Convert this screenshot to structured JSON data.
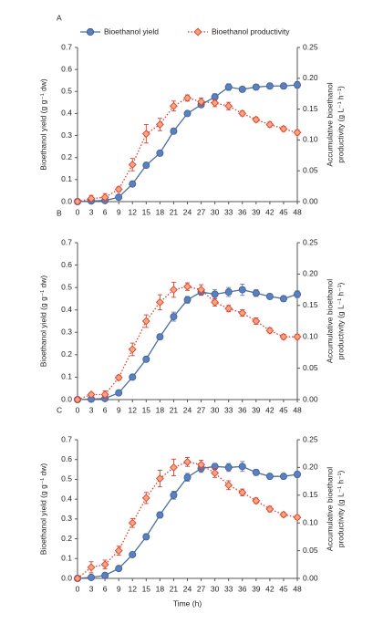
{
  "chart_data": [
    {
      "type": "line",
      "panel_label": "A",
      "x": [
        0,
        3,
        6,
        9,
        12,
        15,
        18,
        21,
        24,
        27,
        30,
        33,
        36,
        39,
        42,
        45,
        48
      ],
      "xlim": [
        0,
        48
      ],
      "xticks": [
        0,
        3,
        6,
        9,
        12,
        15,
        18,
        21,
        24,
        27,
        30,
        33,
        36,
        39,
        42,
        45,
        48
      ],
      "ylim": [
        0,
        0.7
      ],
      "yticks": [
        {
          "value": 0,
          "label": "0.0"
        },
        0.1,
        0.2,
        0.3,
        0.4,
        0.5,
        0.6,
        0.7
      ],
      "y2lim": [
        0,
        0.25
      ],
      "y2ticks": [
        {
          "value": 0,
          "label": "0.00"
        },
        0.05,
        {
          "value": 0.1,
          "label": "0.10"
        },
        0.15,
        {
          "value": 0.2,
          "label": "0.20"
        },
        0.25
      ],
      "ylabel": "Bioethanol yield (g g⁻¹ dw)",
      "y2label": [
        "Accumulative bioethanol",
        "productivity (g L⁻¹ h⁻¹)"
      ],
      "legend": true,
      "series": [
        {
          "name": "Bioethanol yield",
          "color": "#4a6fa5",
          "axis": "y",
          "values": [
            0,
            0.003,
            0.005,
            0.02,
            0.08,
            0.165,
            0.22,
            0.32,
            0.4,
            0.44,
            0.475,
            0.52,
            0.51,
            0.52,
            0.525,
            0.525,
            0.53
          ],
          "errors": [
            0,
            0.003,
            0.004,
            0.005,
            0.01,
            0.012,
            0.012,
            0.012,
            0.01,
            0.01,
            0.015,
            0.015,
            0.01,
            0.012,
            0.012,
            0.012,
            0.015
          ]
        },
        {
          "name": "Bioethanol productivity",
          "color": "#e0402a",
          "axis": "y2",
          "values": [
            0,
            0.005,
            0.007,
            0.02,
            0.06,
            0.11,
            0.125,
            0.155,
            0.168,
            0.162,
            0.16,
            0.155,
            0.143,
            0.133,
            0.125,
            0.118,
            0.112
          ],
          "errors": [
            0,
            0.005,
            0.006,
            0.004,
            0.01,
            0.015,
            0.01,
            0.008,
            0.005,
            0.006,
            0.006,
            0.006,
            0.004,
            0.004,
            0.004,
            0.004,
            0.004
          ]
        }
      ]
    },
    {
      "type": "line",
      "panel_label": "B",
      "x": [
        0,
        3,
        6,
        9,
        12,
        15,
        18,
        21,
        24,
        27,
        30,
        33,
        36,
        39,
        42,
        45,
        48
      ],
      "xlim": [
        0,
        48
      ],
      "xticks": [
        0,
        3,
        6,
        9,
        12,
        15,
        18,
        21,
        24,
        27,
        30,
        33,
        36,
        39,
        42,
        45,
        48
      ],
      "ylim": [
        0,
        0.7
      ],
      "yticks": [
        {
          "value": 0,
          "label": "0.0"
        },
        0.1,
        0.2,
        0.3,
        0.4,
        0.5,
        0.6,
        0.7
      ],
      "y2lim": [
        0,
        0.25
      ],
      "y2ticks": [
        {
          "value": 0,
          "label": "0.00"
        },
        0.05,
        {
          "value": 0.1,
          "label": "0.10"
        },
        0.15,
        {
          "value": 0.2,
          "label": "0.20"
        },
        0.25
      ],
      "ylabel": "Bioethanol yield (g g⁻¹ dw)",
      "y2label": [
        "Accumulative bioethanol",
        "productivity (g L⁻¹ h⁻¹)"
      ],
      "legend": false,
      "series": [
        {
          "color": "#4a6fa5",
          "axis": "y",
          "values": [
            0,
            0.002,
            0.005,
            0.03,
            0.1,
            0.18,
            0.28,
            0.37,
            0.445,
            0.48,
            0.47,
            0.48,
            0.49,
            0.475,
            0.46,
            0.45,
            0.47
          ],
          "errors": [
            0,
            0.003,
            0.004,
            0.005,
            0.01,
            0.01,
            0.012,
            0.02,
            0.015,
            0.015,
            0.02,
            0.02,
            0.025,
            0.015,
            0.012,
            0.012,
            0.015
          ]
        },
        {
          "color": "#e0402a",
          "axis": "y2",
          "values": [
            0,
            0.008,
            0.008,
            0.035,
            0.08,
            0.125,
            0.155,
            0.175,
            0.18,
            0.175,
            0.155,
            0.145,
            0.138,
            0.125,
            0.11,
            0.1,
            0.1
          ],
          "errors": [
            0,
            0.003,
            0.006,
            0.004,
            0.01,
            0.01,
            0.012,
            0.012,
            0.006,
            0.008,
            0.006,
            0.005,
            0.005,
            0.005,
            0.004,
            0.004,
            0.004
          ]
        }
      ]
    },
    {
      "type": "line",
      "panel_label": "C",
      "x": [
        0,
        3,
        6,
        9,
        12,
        15,
        18,
        21,
        24,
        27,
        30,
        33,
        36,
        39,
        42,
        45,
        48
      ],
      "xlim": [
        0,
        48
      ],
      "xticks": [
        0,
        3,
        6,
        9,
        12,
        15,
        18,
        21,
        24,
        27,
        30,
        33,
        36,
        39,
        42,
        45,
        48
      ],
      "ylim": [
        0,
        0.7
      ],
      "yticks": [
        {
          "value": 0,
          "label": "0.0"
        },
        0.1,
        0.2,
        0.3,
        0.4,
        0.5,
        0.6,
        0.7
      ],
      "y2lim": [
        0,
        0.25
      ],
      "y2ticks": [
        {
          "value": 0,
          "label": "0.00"
        },
        0.05,
        {
          "value": 0.1,
          "label": "0.10"
        },
        0.15,
        {
          "value": 0.2,
          "label": "0.20"
        },
        0.25
      ],
      "ylabel": "Bioethanol yield (g g⁻¹ dw)",
      "y2label": [
        "Accumulative bioethanol",
        "productivity (g L⁻¹ h⁻¹)"
      ],
      "xlabel": "Time (h)",
      "legend": false,
      "series": [
        {
          "color": "#4a6fa5",
          "axis": "y",
          "values": [
            0,
            0.005,
            0.015,
            0.05,
            0.12,
            0.21,
            0.32,
            0.42,
            0.51,
            0.555,
            0.565,
            0.56,
            0.565,
            0.535,
            0.515,
            0.515,
            0.525
          ],
          "errors": [
            0,
            0.003,
            0.004,
            0.006,
            0.01,
            0.015,
            0.015,
            0.02,
            0.02,
            0.02,
            0.015,
            0.02,
            0.025,
            0.015,
            0.012,
            0.012,
            0.015
          ]
        },
        {
          "color": "#e0402a",
          "axis": "y2",
          "values": [
            0,
            0.02,
            0.025,
            0.05,
            0.1,
            0.145,
            0.18,
            0.2,
            0.21,
            0.205,
            0.19,
            0.168,
            0.155,
            0.14,
            0.125,
            0.115,
            0.11
          ],
          "errors": [
            0,
            0.01,
            0.008,
            0.008,
            0.008,
            0.01,
            0.015,
            0.015,
            0.008,
            0.008,
            0.008,
            0.008,
            0.006,
            0.005,
            0.005,
            0.004,
            0.004
          ]
        }
      ]
    }
  ]
}
